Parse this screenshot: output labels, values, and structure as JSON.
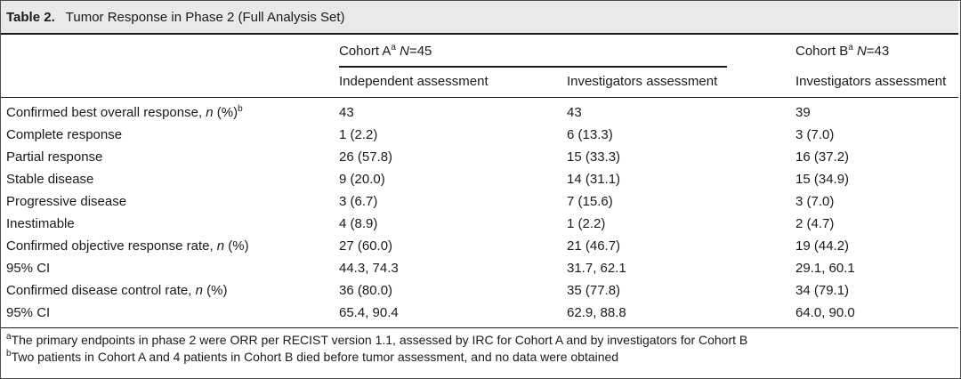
{
  "table": {
    "number": "Table 2.",
    "title": "Tumor Response in Phase 2 (Full Analysis Set)",
    "cohort_a": {
      "label": "Cohort A",
      "sup": "a",
      "n_label": "N",
      "n_value": "=45"
    },
    "cohort_b": {
      "label": "Cohort B",
      "sup": "a",
      "n_label": "N",
      "n_value": "=43"
    },
    "subheaders": [
      "Independent assessment",
      "Investigators assessment",
      "Investigators assessment"
    ],
    "rows": [
      {
        "label": "Confirmed best overall response, ",
        "italic": "n",
        "suffix": " (%)",
        "sup": "b",
        "values": [
          "43",
          "43",
          "39"
        ]
      },
      {
        "label": "Complete response",
        "values": [
          "1 (2.2)",
          "6 (13.3)",
          "3 (7.0)"
        ]
      },
      {
        "label": "Partial response",
        "values": [
          "26 (57.8)",
          "15 (33.3)",
          "16 (37.2)"
        ]
      },
      {
        "label": "Stable disease",
        "values": [
          "9 (20.0)",
          "14 (31.1)",
          "15 (34.9)"
        ]
      },
      {
        "label": "Progressive disease",
        "values": [
          "3 (6.7)",
          "7 (15.6)",
          "3 (7.0)"
        ]
      },
      {
        "label": "Inestimable",
        "values": [
          "4 (8.9)",
          "1 (2.2)",
          "2 (4.7)"
        ]
      },
      {
        "label": "Confirmed objective response rate, ",
        "italic": "n",
        "suffix": " (%)",
        "values": [
          "27 (60.0)",
          "21 (46.7)",
          "19 (44.2)"
        ]
      },
      {
        "label": "95% CI",
        "values": [
          "44.3, 74.3",
          "31.7, 62.1",
          "29.1, 60.1"
        ]
      },
      {
        "label": "Confirmed disease control rate, ",
        "italic": "n",
        "suffix": " (%)",
        "values": [
          "36 (80.0)",
          "35 (77.8)",
          "34 (79.1)"
        ]
      },
      {
        "label": "95% CI",
        "values": [
          "65.4, 90.4",
          "62.9, 88.8",
          "64.0, 90.0"
        ]
      }
    ],
    "footnotes": [
      {
        "mark": "a",
        "text": "The primary endpoints in phase 2 were ORR per RECIST version 1.1, assessed by IRC for Cohort A and by investigators for Cohort B"
      },
      {
        "mark": "b",
        "text": "Two patients in Cohort A and 4 patients in Cohort B died before tumor assessment, and no data were obtained"
      }
    ]
  }
}
